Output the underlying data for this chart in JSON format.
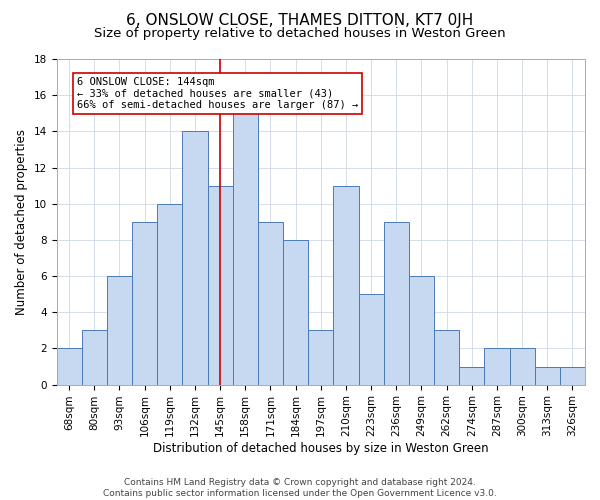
{
  "title": "6, ONSLOW CLOSE, THAMES DITTON, KT7 0JH",
  "subtitle": "Size of property relative to detached houses in Weston Green",
  "xlabel": "Distribution of detached houses by size in Weston Green",
  "ylabel": "Number of detached properties",
  "categories": [
    "68sqm",
    "80sqm",
    "93sqm",
    "106sqm",
    "119sqm",
    "132sqm",
    "145sqm",
    "158sqm",
    "171sqm",
    "184sqm",
    "197sqm",
    "210sqm",
    "223sqm",
    "236sqm",
    "249sqm",
    "262sqm",
    "274sqm",
    "287sqm",
    "300sqm",
    "313sqm",
    "326sqm"
  ],
  "values": [
    2,
    3,
    6,
    9,
    10,
    14,
    11,
    15,
    9,
    8,
    3,
    11,
    5,
    9,
    6,
    3,
    1,
    2,
    2,
    1,
    1
  ],
  "bar_color": "#c6d9f0",
  "bar_edge_color": "#4a7ab5",
  "vline_x_index": 6,
  "vline_color": "#cc0000",
  "annotation_text": "6 ONSLOW CLOSE: 144sqm\n← 33% of detached houses are smaller (43)\n66% of semi-detached houses are larger (87) →",
  "annotation_box_color": "#ffffff",
  "annotation_box_edge_color": "#cc0000",
  "ylim": [
    0,
    18
  ],
  "yticks": [
    0,
    2,
    4,
    6,
    8,
    10,
    12,
    14,
    16,
    18
  ],
  "footer_line1": "Contains HM Land Registry data © Crown copyright and database right 2024.",
  "footer_line2": "Contains public sector information licensed under the Open Government Licence v3.0.",
  "background_color": "#ffffff",
  "grid_color": "#d0d8e8",
  "title_fontsize": 11,
  "subtitle_fontsize": 9.5,
  "axis_label_fontsize": 8.5,
  "tick_fontsize": 7.5,
  "footer_fontsize": 6.5,
  "annotation_fontsize": 7.5
}
